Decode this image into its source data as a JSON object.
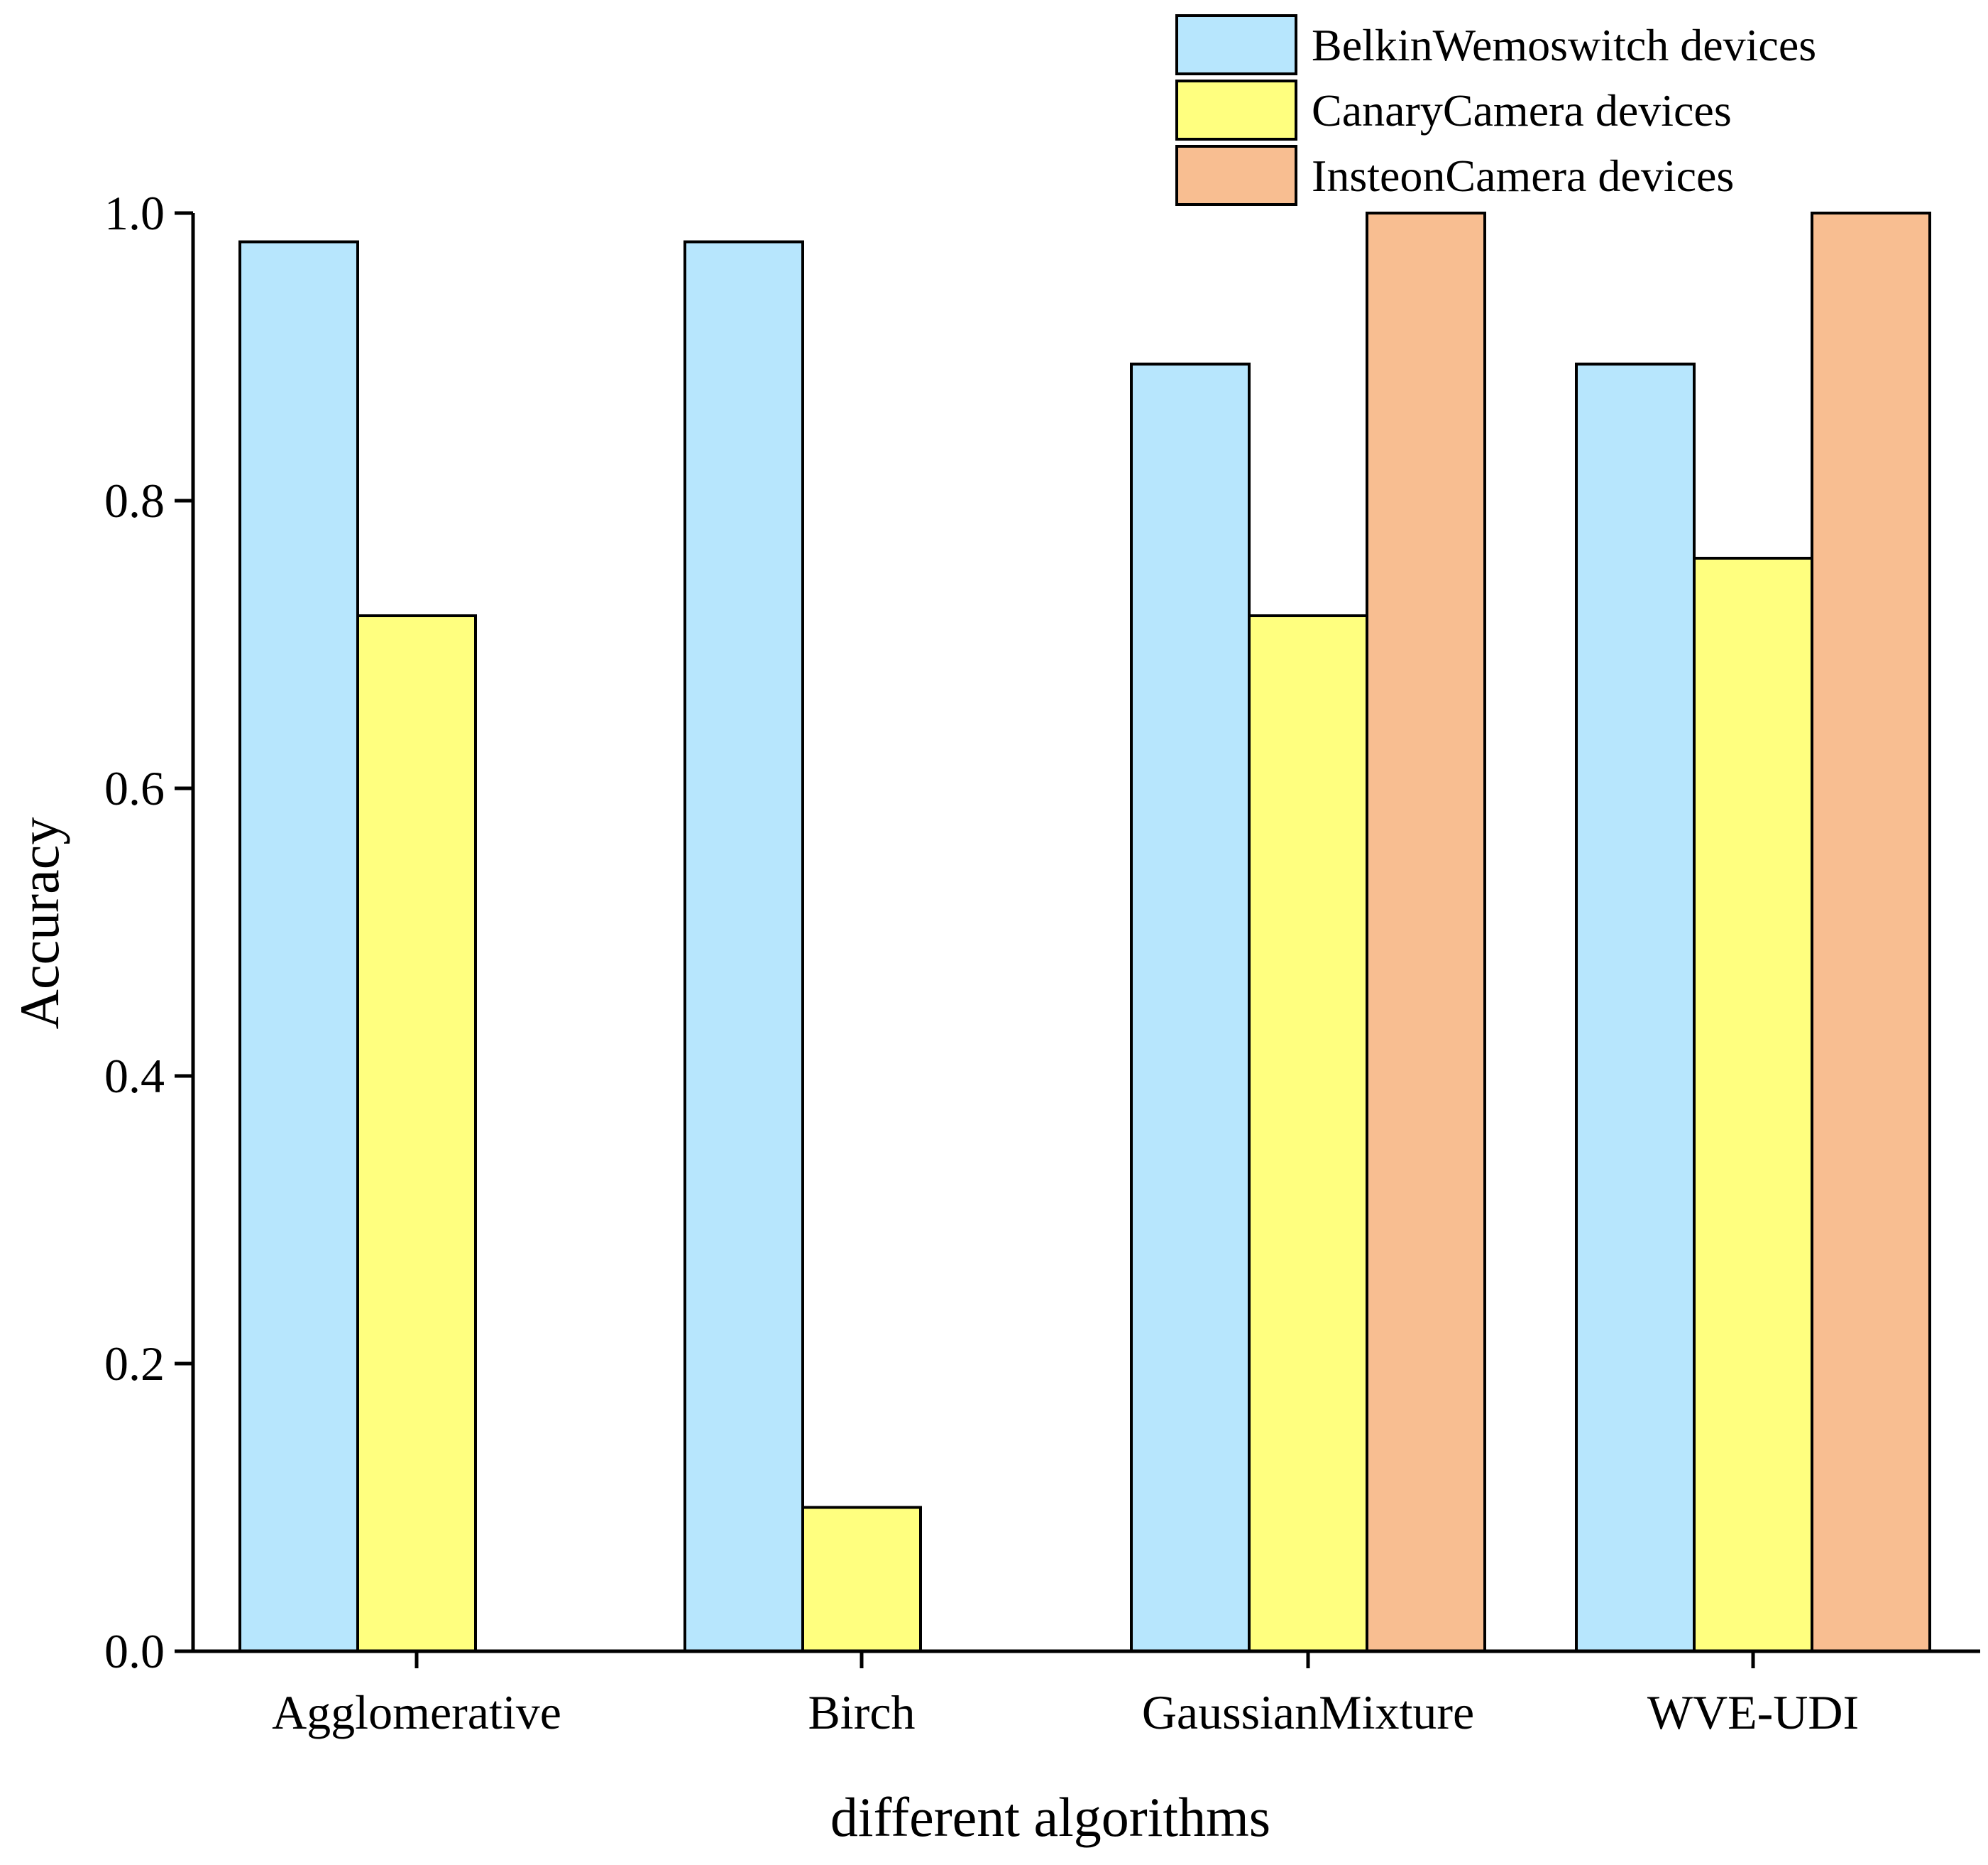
{
  "chart_data": {
    "type": "bar",
    "title": "",
    "xlabel": "different algorithms",
    "ylabel": "Accuracy",
    "ylim": [
      0,
      1.0
    ],
    "yticks": [
      "0.0",
      "0.2",
      "0.4",
      "0.6",
      "0.8",
      "1.0"
    ],
    "grid": false,
    "legend_position": "top-right",
    "categories": [
      "Agglomerative",
      "Birch",
      "GaussianMixture",
      "WVE-UDI"
    ],
    "series": [
      {
        "name": "BelkinWemoswitch devices",
        "color": "#B7E6FD",
        "values": [
          0.98,
          0.98,
          0.895,
          0.895
        ]
      },
      {
        "name": "CanaryCamera devices",
        "color": "#FFFF7F",
        "values": [
          0.72,
          0.1,
          0.72,
          0.76
        ]
      },
      {
        "name": "InsteonCamera devices",
        "color": "#F8BE91",
        "values": [
          0,
          0,
          1.0,
          1.0
        ]
      }
    ]
  }
}
